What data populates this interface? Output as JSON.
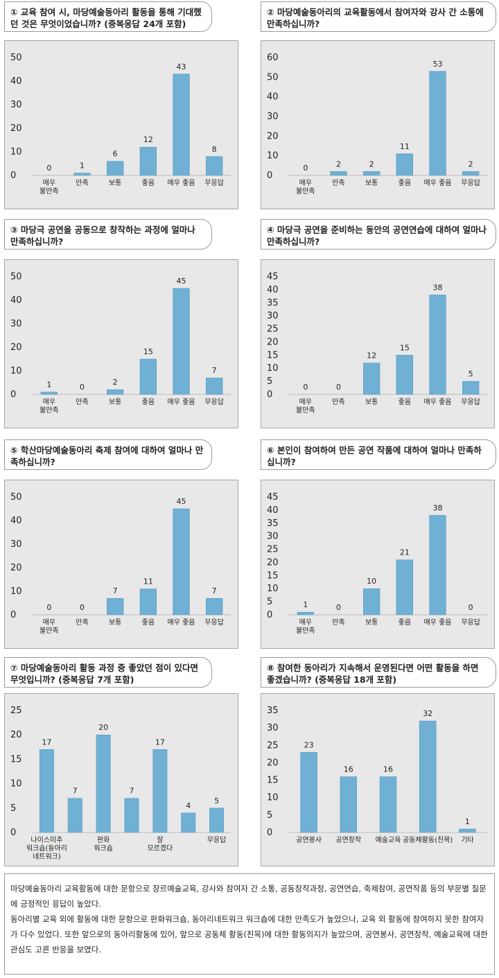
{
  "panels": [
    {
      "question": "① 교육 참여 시, 마당예술동아리 활동을 통해 기대했던 것은 무엇이었습니까? (중복응답 24개 포함)",
      "chart_data": {
        "type": "bar",
        "categories": [
          "매우\n불만족",
          "만족",
          "보통",
          "좋음",
          "매우 좋음",
          "무응답"
        ],
        "values": [
          0,
          1,
          6,
          12,
          43,
          8
        ],
        "ylim": [
          0,
          50
        ],
        "yticks": [
          0,
          10,
          20,
          30,
          40,
          50
        ]
      }
    },
    {
      "question": "② 마당예술동아리의 교육활동에서 참여자와 강사 간 소통에 만족하십니까?",
      "chart_data": {
        "type": "bar",
        "categories": [
          "매우\n불만족",
          "만족",
          "보통",
          "좋음",
          "매우 좋음",
          "무응답"
        ],
        "values": [
          0,
          2,
          2,
          11,
          53,
          2
        ],
        "ylim": [
          0,
          60
        ],
        "yticks": [
          0,
          10,
          20,
          30,
          40,
          50,
          60
        ]
      }
    },
    {
      "question": "③ 마당극 공연을 공동으로 창작하는 과정에 얼마나 만족하십니까?",
      "chart_data": {
        "type": "bar",
        "categories": [
          "매우\n불만족",
          "만족",
          "보통",
          "좋음",
          "매우 좋음",
          "무응답"
        ],
        "values": [
          1,
          0,
          2,
          15,
          45,
          7
        ],
        "ylim": [
          0,
          50
        ],
        "yticks": [
          0,
          10,
          20,
          30,
          40,
          50
        ]
      }
    },
    {
      "question": "④ 마당극 공연을 준비하는 동안의 공연연습에 대하여 얼마나 만족하십니까?",
      "chart_data": {
        "type": "bar",
        "categories": [
          "매우\n불만족",
          "만족",
          "보통",
          "좋음",
          "매우 좋음",
          "무응답"
        ],
        "values": [
          0,
          0,
          12,
          15,
          38,
          5
        ],
        "ylim": [
          0,
          45
        ],
        "yticks": [
          0,
          5,
          10,
          15,
          20,
          25,
          30,
          35,
          40,
          45
        ]
      }
    },
    {
      "question": "⑤ 학산마당예술동아리 축제 참여에 대하여 얼마나 만족하십니까?",
      "chart_data": {
        "type": "bar",
        "categories": [
          "매우\n불만족",
          "만족",
          "보통",
          "좋음",
          "매우 좋음",
          "무응답"
        ],
        "values": [
          0,
          0,
          7,
          11,
          45,
          7
        ],
        "ylim": [
          0,
          50
        ],
        "yticks": [
          0,
          10,
          20,
          30,
          40,
          50
        ]
      }
    },
    {
      "question": "⑥ 본인이 참여하여 만든 공연 작품에 대하여 얼마나 만족하십니까?",
      "chart_data": {
        "type": "bar",
        "categories": [
          "매우\n불만족",
          "만족",
          "보통",
          "좋음",
          "매우 좋음",
          "무응답"
        ],
        "values": [
          1,
          0,
          10,
          21,
          38,
          0
        ],
        "ylim": [
          0,
          45
        ],
        "yticks": [
          0,
          5,
          10,
          15,
          20,
          25,
          30,
          35,
          40,
          45
        ]
      }
    },
    {
      "question": "⑦ 마당예술동아리 활동 과정 중 좋았던 점이 있다면 무엇입니까? (중복응답 7개 포함)",
      "chart_data": {
        "type": "bar",
        "categories": [
          "나이스미추\n워크숍(동아리\n네트워크)",
          "",
          "판화\n워크숍",
          "",
          "잘\n모르겠다",
          "",
          "무응답"
        ],
        "values": [
          17,
          7,
          20,
          7,
          17,
          4,
          5
        ],
        "ylim": [
          0,
          25
        ],
        "yticks": [
          0,
          5,
          10,
          15,
          20,
          25
        ]
      }
    },
    {
      "question": "⑧ 참여한 동아리가 지속해서 운영된다면 어떤 활동을 하면 좋겠습니까? (중복응답 18개 포함)",
      "chart_data": {
        "type": "bar",
        "categories": [
          "공연봉사",
          "공연창작",
          "예술교육",
          "공동체활동(친목)",
          "기타"
        ],
        "values": [
          23,
          16,
          16,
          32,
          1
        ],
        "ylim": [
          0,
          35
        ],
        "yticks": [
          0,
          5,
          10,
          15,
          20,
          25,
          30,
          35
        ]
      }
    }
  ],
  "summary": {
    "paragraph1": "마당예술동아리 교육활동에 대한 문항으로 장르예술교육, 강사와 참여자 간 소통, 공동창작과정, 공연연습, 축제참여, 공연작품 등의 부문별 질문에 긍정적인 응답이 높았다.",
    "paragraph2": "동아리별 교육 외에 활동에 대한 문항으로 판화워크숍, 동아리네트워크 워크숍에 대한 만족도가 높았으나, 교육 외 활동에 참여하지 못한 참여자가 다수 있었다. 또한 앞으로의 동아리활동에 있어, 앞으로 공동체 활동(친목)에 대한 활동의지가 높았으며, 공연봉사, 공연창작, 예술교육에 대한 관심도 고른 반응을 보였다."
  }
}
